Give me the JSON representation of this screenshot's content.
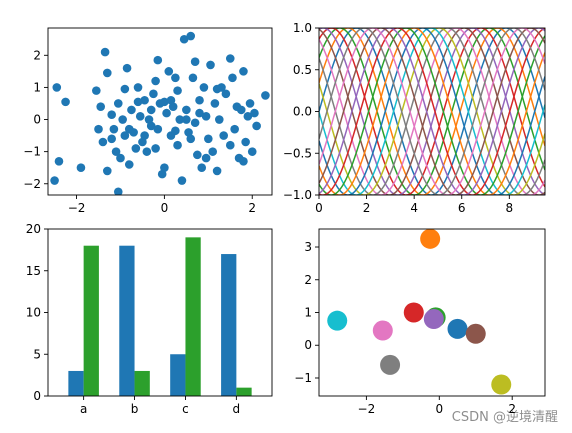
{
  "watermark": "CSDN @逆境清醒",
  "chart_data": [
    {
      "type": "scatter",
      "xlim": [
        -2.65,
        2.45
      ],
      "ylim": [
        -2.35,
        2.85
      ],
      "xticks": [
        -2,
        0,
        2
      ],
      "yticks": [
        -2,
        -1,
        0,
        1,
        2
      ],
      "color": "#1f77b4",
      "points": [
        [
          -2.5,
          -1.9
        ],
        [
          -2.4,
          -1.3
        ],
        [
          -2.45,
          1.0
        ],
        [
          -2.25,
          0.55
        ],
        [
          -1.9,
          -1.5
        ],
        [
          -1.55,
          0.9
        ],
        [
          -1.45,
          0.4
        ],
        [
          -1.4,
          -0.7
        ],
        [
          -1.35,
          2.1
        ],
        [
          -1.3,
          1.45
        ],
        [
          -1.3,
          -1.6
        ],
        [
          -1.2,
          0.15
        ],
        [
          -1.15,
          -0.3
        ],
        [
          -1.1,
          -1.0
        ],
        [
          -1.05,
          0.5
        ],
        [
          -1.05,
          -2.25
        ],
        [
          -1.0,
          -1.2
        ],
        [
          -0.95,
          0.0
        ],
        [
          -0.9,
          -0.5
        ],
        [
          -0.85,
          1.6
        ],
        [
          -0.8,
          -1.4
        ],
        [
          -0.75,
          0.3
        ],
        [
          -0.7,
          -0.4
        ],
        [
          -0.65,
          -0.9
        ],
        [
          -0.6,
          1.0
        ],
        [
          -0.55,
          0.1
        ],
        [
          -0.5,
          -0.7
        ],
        [
          -0.45,
          0.6
        ],
        [
          -0.4,
          -1.0
        ],
        [
          -0.35,
          0.0
        ],
        [
          -0.3,
          -0.2
        ],
        [
          -0.25,
          0.8
        ],
        [
          -0.2,
          1.2
        ],
        [
          -0.15,
          -0.3
        ],
        [
          -0.1,
          0.5
        ],
        [
          -0.05,
          -1.7
        ],
        [
          0.0,
          -1.5
        ],
        [
          0.05,
          0.2
        ],
        [
          0.1,
          1.5
        ],
        [
          0.15,
          -0.5
        ],
        [
          0.2,
          0.4
        ],
        [
          0.25,
          1.3
        ],
        [
          0.3,
          -0.8
        ],
        [
          0.35,
          0.0
        ],
        [
          0.4,
          -1.9
        ],
        [
          0.45,
          2.5
        ],
        [
          0.5,
          0.3
        ],
        [
          0.55,
          -0.4
        ],
        [
          0.6,
          2.6
        ],
        [
          0.65,
          1.3
        ],
        [
          0.7,
          -0.1
        ],
        [
          0.75,
          -1.1
        ],
        [
          0.8,
          0.6
        ],
        [
          0.85,
          -1.5
        ],
        [
          0.9,
          1.0
        ],
        [
          0.95,
          0.1
        ],
        [
          1.0,
          -0.6
        ],
        [
          1.05,
          1.7
        ],
        [
          1.1,
          -1.0
        ],
        [
          1.15,
          0.5
        ],
        [
          1.2,
          -1.6
        ],
        [
          1.25,
          0.0
        ],
        [
          1.3,
          1.0
        ],
        [
          1.35,
          -0.5
        ],
        [
          1.4,
          0.8
        ],
        [
          1.5,
          -0.8
        ],
        [
          1.55,
          1.3
        ],
        [
          1.6,
          -0.3
        ],
        [
          1.65,
          0.4
        ],
        [
          1.7,
          -1.2
        ],
        [
          1.75,
          0.3
        ],
        [
          1.8,
          1.5
        ],
        [
          1.85,
          -0.7
        ],
        [
          1.9,
          0.1
        ],
        [
          1.95,
          0.5
        ],
        [
          2.0,
          -1.0
        ],
        [
          2.05,
          0.2
        ],
        [
          2.1,
          -0.2
        ],
        [
          2.3,
          0.75
        ],
        [
          1.8,
          -1.3
        ],
        [
          0.25,
          -0.35
        ],
        [
          0.0,
          0.55
        ],
        [
          -0.6,
          0.55
        ],
        [
          0.5,
          0.0
        ],
        [
          -0.3,
          0.3
        ],
        [
          0.3,
          0.9
        ],
        [
          -0.8,
          -0.3
        ],
        [
          0.7,
          1.8
        ],
        [
          1.5,
          1.9
        ],
        [
          -0.15,
          1.85
        ],
        [
          -1.5,
          -0.3
        ],
        [
          0.95,
          -1.2
        ],
        [
          -0.45,
          -0.5
        ],
        [
          0.6,
          -0.6
        ],
        [
          0.15,
          0.6
        ],
        [
          -0.9,
          0.95
        ],
        [
          1.2,
          0.95
        ],
        [
          -0.2,
          -0.9
        ],
        [
          0.8,
          0.2
        ],
        [
          -1.2,
          -0.6
        ]
      ]
    },
    {
      "type": "line",
      "xlim": [
        0,
        9.5
      ],
      "ylim": [
        -1.0,
        1.0
      ],
      "xticks": [
        0,
        2,
        4,
        6,
        8
      ],
      "yticks": [
        -1.0,
        -0.5,
        0.0,
        0.5,
        1.0
      ],
      "ytick_labels": [
        "−1.0",
        "−0.5",
        "0.0",
        "0.5",
        "1.0"
      ],
      "function": "sin(x + phase)",
      "phases": [
        0,
        0.35,
        0.7,
        1.05,
        1.4,
        1.75,
        2.1,
        2.45,
        2.8,
        3.15,
        3.5,
        3.85,
        4.2,
        4.55,
        4.9,
        5.25,
        5.6,
        5.95
      ],
      "colors": [
        "#1f77b4",
        "#ff7f0e",
        "#2ca02c",
        "#d62728",
        "#9467bd",
        "#8c564b",
        "#e377c2",
        "#7f7f7f",
        "#bcbd22",
        "#17becf"
      ]
    },
    {
      "type": "bar",
      "categories": [
        "a",
        "b",
        "c",
        "d"
      ],
      "ylim": [
        0,
        20
      ],
      "yticks": [
        0,
        5,
        10,
        15,
        20
      ],
      "series": [
        {
          "values": [
            3,
            18,
            5,
            17
          ],
          "color": "#1f77b4"
        },
        {
          "values": [
            18,
            3,
            19,
            1
          ],
          "color": "#2ca02c"
        }
      ]
    },
    {
      "type": "scatter",
      "xlim": [
        -3.3,
        2.9
      ],
      "ylim": [
        -1.55,
        3.55
      ],
      "xticks": [
        -2,
        0,
        2
      ],
      "xtick_labels": [
        "−2",
        "0",
        "2"
      ],
      "yticks": [
        -1,
        0,
        1,
        2,
        3
      ],
      "ytick_labels": [
        "−1",
        "0",
        "1",
        "2",
        "3"
      ],
      "points": [
        {
          "x": -0.25,
          "y": 3.25,
          "color": "#ff7f0e"
        },
        {
          "x": -0.7,
          "y": 1.0,
          "color": "#d62728"
        },
        {
          "x": -0.1,
          "y": 0.85,
          "color": "#2ca02c"
        },
        {
          "x": -0.15,
          "y": 0.8,
          "color": "#9467bd"
        },
        {
          "x": 0.5,
          "y": 0.5,
          "color": "#1f77b4"
        },
        {
          "x": 1.0,
          "y": 0.35,
          "color": "#8c564b"
        },
        {
          "x": -1.55,
          "y": 0.45,
          "color": "#e377c2"
        },
        {
          "x": -2.8,
          "y": 0.75,
          "color": "#17becf"
        },
        {
          "x": -1.35,
          "y": -0.6,
          "color": "#7f7f7f"
        },
        {
          "x": 1.7,
          "y": -1.2,
          "color": "#bcbd22"
        }
      ]
    }
  ]
}
